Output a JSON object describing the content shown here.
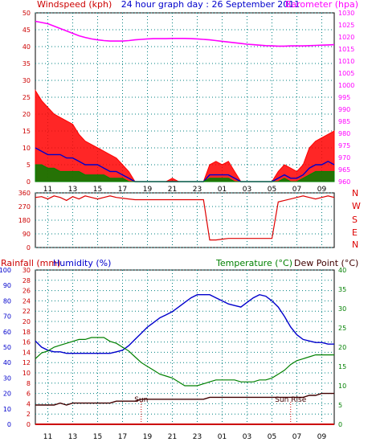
{
  "header": {
    "left_title": "Windspeed (kph)",
    "center_title": "24 hour graph day : 26 September 2011",
    "right_title": "Barometer (hpa)"
  },
  "colors": {
    "wind_gust": "#ff0000",
    "wind_avg": "#0000cc",
    "wind_low": "#008000",
    "barometer": "#ff00ff",
    "direction": "#dd0000",
    "temperature": "#0000cc",
    "humidity": "#008000",
    "dewpoint": "#400000",
    "rain": "#cc0000",
    "axis_left": "#cc0000",
    "axis_right": "#008000",
    "axis_blue": "#0000cc",
    "grid": "#008080"
  },
  "x_ticks": [
    "11",
    "13",
    "15",
    "17",
    "19",
    "21",
    "23",
    "01",
    "03",
    "05",
    "07",
    "09"
  ],
  "chart_data": [
    {
      "type": "area",
      "title": "24 hour graph day : 26 September 2011",
      "ylabel": "Windspeed (kph)",
      "y2label": "Barometer (hpa)",
      "ylim": [
        0,
        50
      ],
      "y2lim": [
        960,
        1030
      ],
      "y_ticks": [
        0,
        5,
        10,
        15,
        20,
        25,
        30,
        35,
        40,
        45,
        50
      ],
      "y2_ticks": [
        960,
        965,
        970,
        975,
        980,
        985,
        990,
        995,
        1000,
        1005,
        1010,
        1015,
        1020,
        1025,
        1030
      ],
      "x": [
        10,
        10.5,
        11,
        11.5,
        12,
        12.5,
        13,
        13.5,
        14,
        14.5,
        15,
        15.5,
        16,
        16.5,
        17,
        17.5,
        18,
        18.5,
        19,
        19.5,
        20,
        20.5,
        21,
        21.5,
        22,
        22.5,
        23,
        23.5,
        24,
        24.5,
        25,
        25.5,
        26,
        26.5,
        27,
        27.5,
        28,
        28.5,
        29,
        29.5,
        30,
        30.5,
        31,
        31.5,
        32,
        32.5,
        33,
        33.5,
        34
      ],
      "series": [
        {
          "name": "gust",
          "values": [
            27,
            24,
            22,
            20,
            19,
            18,
            17,
            14,
            12,
            11,
            10,
            9,
            8,
            7,
            5,
            3,
            0,
            0,
            0,
            0,
            0,
            0,
            1,
            0,
            0,
            0,
            0,
            0,
            5,
            6,
            5,
            6,
            3,
            0,
            0,
            0,
            0,
            0,
            0,
            3,
            5,
            4,
            3,
            5,
            10,
            12,
            13,
            14,
            15
          ]
        },
        {
          "name": "average",
          "values": [
            10,
            9,
            8,
            8,
            8,
            7,
            7,
            6,
            5,
            5,
            5,
            4,
            3,
            3,
            2,
            1,
            0,
            0,
            0,
            0,
            0,
            0,
            0,
            0,
            0,
            0,
            0,
            0,
            2,
            2,
            2,
            2,
            1,
            0,
            0,
            0,
            0,
            0,
            0,
            1,
            2,
            1,
            1,
            2,
            4,
            5,
            5,
            6,
            5
          ]
        },
        {
          "name": "low",
          "values": [
            5,
            5,
            4,
            4,
            3,
            3,
            3,
            3,
            2,
            2,
            2,
            2,
            1,
            1,
            1,
            0,
            0,
            0,
            0,
            0,
            0,
            0,
            0,
            0,
            0,
            0,
            0,
            0,
            1,
            1,
            1,
            1,
            0,
            0,
            0,
            0,
            0,
            0,
            0,
            0,
            1,
            0,
            0,
            1,
            2,
            3,
            3,
            3,
            3
          ]
        },
        {
          "name": "barometer",
          "values": [
            1026.5,
            1026,
            1025.5,
            1024.5,
            1023.5,
            1022.5,
            1021.5,
            1020.5,
            1019.8,
            1019.2,
            1018.8,
            1018.5,
            1018.3,
            1018.3,
            1018.3,
            1018.5,
            1018.8,
            1019,
            1019.2,
            1019.3,
            1019.3,
            1019.3,
            1019.4,
            1019.4,
            1019.4,
            1019.3,
            1019.2,
            1019,
            1018.8,
            1018.5,
            1018.2,
            1017.9,
            1017.6,
            1017.3,
            1017,
            1016.8,
            1016.6,
            1016.4,
            1016.3,
            1016.2,
            1016.2,
            1016.3,
            1016.3,
            1016.3,
            1016.4,
            1016.5,
            1016.6,
            1016.7,
            1016.8
          ]
        }
      ]
    },
    {
      "type": "line",
      "ylabel_right_letters": [
        "N",
        "W",
        "S",
        "E",
        "N"
      ],
      "ylim": [
        0,
        360
      ],
      "y_ticks": [
        0,
        90,
        180,
        270,
        360
      ],
      "x": [
        10,
        10.5,
        11,
        11.5,
        12,
        12.5,
        13,
        13.5,
        14,
        14.5,
        15,
        15.5,
        16,
        16.5,
        17,
        17.5,
        18,
        18.5,
        19,
        19.5,
        20,
        20.5,
        21,
        21.5,
        22,
        22.5,
        23,
        23.5,
        24,
        24.5,
        25,
        25.5,
        26,
        26.5,
        27,
        27.5,
        28,
        28.5,
        29,
        29.5,
        30,
        30.5,
        31,
        31.5,
        32,
        32.5,
        33,
        33.5,
        34
      ],
      "series": [
        {
          "name": "direction",
          "values": [
            330,
            335,
            320,
            340,
            330,
            310,
            335,
            320,
            340,
            330,
            320,
            330,
            340,
            330,
            325,
            320,
            315,
            315,
            315,
            315,
            315,
            315,
            315,
            315,
            315,
            315,
            315,
            315,
            50,
            50,
            55,
            60,
            60,
            60,
            60,
            60,
            60,
            60,
            60,
            300,
            310,
            320,
            330,
            340,
            330,
            320,
            330,
            340,
            330
          ]
        }
      ]
    },
    {
      "type": "line",
      "y_left_labels": [
        "Rainfall (mm)",
        "Humidity (%)"
      ],
      "y_right_labels": [
        "Temperature (°C)",
        "Dew Point (°C)"
      ],
      "rain_ylim": [
        0,
        30
      ],
      "humidity_ylim": [
        0,
        100
      ],
      "temp_ylim": [
        0,
        40
      ],
      "rain_ticks": [
        0,
        2,
        4,
        6,
        8,
        10,
        12,
        14,
        16,
        18,
        20,
        22,
        24,
        26,
        28,
        30
      ],
      "humidity_ticks": [
        0,
        10,
        20,
        30,
        40,
        50,
        60,
        70,
        80,
        90,
        100
      ],
      "temp_ticks": [
        0,
        5,
        10,
        15,
        20,
        25,
        30,
        35,
        40
      ],
      "x": [
        10,
        10.5,
        11,
        11.5,
        12,
        12.5,
        13,
        13.5,
        14,
        14.5,
        15,
        15.5,
        16,
        16.5,
        17,
        17.5,
        18,
        18.5,
        19,
        19.5,
        20,
        20.5,
        21,
        21.5,
        22,
        22.5,
        23,
        23.5,
        24,
        24.5,
        25,
        25.5,
        26,
        26.5,
        27,
        27.5,
        28,
        28.5,
        29,
        29.5,
        30,
        30.5,
        31,
        31.5,
        32,
        32.5,
        33,
        33.5,
        34
      ],
      "series": [
        {
          "name": "humidity",
          "values": [
            54,
            50,
            48,
            47,
            47,
            46,
            46,
            46,
            46,
            46,
            46,
            46,
            46,
            47,
            48,
            51,
            55,
            59,
            63,
            66,
            69,
            71,
            73,
            76,
            79,
            82,
            84,
            84,
            84,
            82,
            80,
            78,
            77,
            76,
            79,
            82,
            84,
            83,
            80,
            76,
            70,
            63,
            58,
            55,
            54,
            53,
            53,
            52,
            52
          ]
        },
        {
          "name": "temperature",
          "values": [
            17,
            18.5,
            19,
            20,
            20.5,
            21,
            21.5,
            22,
            22,
            22.5,
            22.5,
            22.5,
            21.5,
            21,
            20,
            19,
            17.5,
            16,
            15,
            14,
            13,
            12.5,
            12,
            11,
            10,
            10,
            10,
            10.5,
            11,
            11.5,
            11.5,
            11.5,
            11.5,
            11,
            11,
            11,
            11.5,
            11.5,
            12,
            13,
            14,
            15.5,
            16.5,
            17,
            17.5,
            18,
            18,
            18,
            18
          ]
        },
        {
          "name": "dewpoint",
          "values": [
            5,
            5,
            5,
            5,
            5.5,
            5,
            5.5,
            5.5,
            5.5,
            5.5,
            5.5,
            5.5,
            5.5,
            6,
            6,
            6,
            6,
            6.5,
            6.5,
            6.5,
            6.5,
            6.5,
            6.5,
            6.5,
            6.5,
            6.5,
            6.5,
            6.5,
            7,
            7,
            7,
            7,
            7,
            7,
            7,
            7,
            7,
            7,
            7,
            7,
            7,
            7,
            7,
            7,
            7.5,
            7.5,
            8,
            8,
            8
          ]
        },
        {
          "name": "rainfall",
          "values": [
            0,
            0,
            0,
            0,
            0,
            0,
            0,
            0,
            0,
            0,
            0,
            0,
            0,
            0,
            0,
            0,
            0,
            0,
            0,
            0,
            0,
            0,
            0,
            0,
            0,
            0,
            0,
            0,
            0,
            0,
            0,
            0,
            0,
            0,
            0,
            0,
            0,
            0,
            0,
            0,
            0,
            0,
            0,
            0,
            0,
            0,
            0,
            0,
            0
          ]
        }
      ],
      "annotations": [
        "Sun",
        "Sun  Rise"
      ]
    }
  ]
}
